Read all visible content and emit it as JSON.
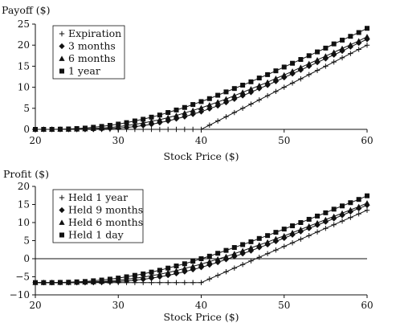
{
  "chart_data": [
    {
      "type": "line",
      "title": "",
      "ylabel": "Payoff ($)",
      "xlabel": "Stock Price ($)",
      "xlim": [
        20,
        60
      ],
      "ylim": [
        0,
        25
      ],
      "xticks": [
        "20",
        "30",
        "40",
        "50",
        "60"
      ],
      "yticks": [
        "0",
        "5",
        "10",
        "15",
        "20",
        "25"
      ],
      "grid": false,
      "legend_position": "top-left",
      "x": [
        20,
        21,
        22,
        23,
        24,
        25,
        26,
        27,
        28,
        29,
        30,
        31,
        32,
        33,
        34,
        35,
        36,
        37,
        38,
        39,
        40,
        41,
        42,
        43,
        44,
        45,
        46,
        47,
        48,
        49,
        50,
        51,
        52,
        53,
        54,
        55,
        56,
        57,
        58,
        59,
        60
      ],
      "series": [
        {
          "name": "Expiration",
          "marker": "plus",
          "values": [
            0,
            0,
            0,
            0,
            0,
            0,
            0,
            0,
            0,
            0,
            0,
            0,
            0,
            0,
            0,
            0,
            0,
            0,
            0,
            0,
            0,
            1,
            2,
            3,
            4,
            5,
            6,
            7,
            8,
            9,
            10,
            11,
            12,
            13,
            14,
            15,
            16,
            17,
            18,
            19,
            20
          ]
        },
        {
          "name": "3 months",
          "marker": "diamond",
          "values": [
            0,
            0,
            0,
            0,
            0,
            0,
            0,
            0.05,
            0.1,
            0.2,
            0.3,
            0.45,
            0.65,
            0.9,
            1.2,
            1.6,
            2.0,
            2.5,
            3.0,
            3.6,
            4.2,
            4.9,
            5.6,
            6.4,
            7.2,
            8.0,
            8.8,
            9.7,
            10.5,
            11.4,
            12.3,
            13.2,
            14.1,
            15.0,
            15.9,
            16.8,
            17.7,
            18.6,
            19.6,
            20.5,
            21.4
          ]
        },
        {
          "name": "6 months",
          "marker": "triangle",
          "values": [
            0,
            0,
            0,
            0,
            0,
            0.05,
            0.1,
            0.2,
            0.3,
            0.45,
            0.65,
            0.9,
            1.2,
            1.5,
            1.9,
            2.3,
            2.8,
            3.3,
            3.9,
            4.5,
            5.1,
            5.8,
            6.5,
            7.2,
            8.0,
            8.8,
            9.6,
            10.4,
            11.2,
            12.1,
            12.9,
            13.8,
            14.7,
            15.6,
            16.5,
            17.4,
            18.3,
            19.2,
            20.1,
            21.0,
            22.0
          ]
        },
        {
          "name": "1 year",
          "marker": "square",
          "values": [
            0,
            0,
            0,
            0.05,
            0.1,
            0.2,
            0.3,
            0.5,
            0.7,
            0.95,
            1.25,
            1.6,
            2.0,
            2.4,
            2.9,
            3.4,
            4.0,
            4.6,
            5.2,
            5.9,
            6.6,
            7.3,
            8.1,
            8.9,
            9.7,
            10.5,
            11.3,
            12.2,
            13.0,
            13.9,
            14.8,
            15.7,
            16.6,
            17.5,
            18.4,
            19.3,
            20.3,
            21.2,
            22.1,
            23.0,
            24.0
          ]
        }
      ]
    },
    {
      "type": "line",
      "title": "",
      "ylabel": "Profit ($)",
      "xlabel": "Stock Price ($)",
      "xlim": [
        20,
        60
      ],
      "ylim": [
        -10,
        20
      ],
      "xticks": [
        "20",
        "30",
        "40",
        "50",
        "60"
      ],
      "yticks": [
        "−10",
        "−5",
        "0",
        "5",
        "10",
        "15",
        "20"
      ],
      "zero_line": true,
      "grid": false,
      "legend_position": "top-left",
      "x": [
        20,
        21,
        22,
        23,
        24,
        25,
        26,
        27,
        28,
        29,
        30,
        31,
        32,
        33,
        34,
        35,
        36,
        37,
        38,
        39,
        40,
        41,
        42,
        43,
        44,
        45,
        46,
        47,
        48,
        49,
        50,
        51,
        52,
        53,
        54,
        55,
        56,
        57,
        58,
        59,
        60
      ],
      "series": [
        {
          "name": "Held 1 year",
          "marker": "plus",
          "values": [
            -6.6,
            -6.6,
            -6.6,
            -6.6,
            -6.6,
            -6.6,
            -6.6,
            -6.6,
            -6.6,
            -6.6,
            -6.6,
            -6.6,
            -6.6,
            -6.6,
            -6.6,
            -6.6,
            -6.6,
            -6.6,
            -6.6,
            -6.6,
            -6.6,
            -5.6,
            -4.6,
            -3.6,
            -2.6,
            -1.6,
            -0.6,
            0.4,
            1.4,
            2.4,
            3.4,
            4.4,
            5.4,
            6.4,
            7.4,
            8.4,
            9.4,
            10.4,
            11.4,
            12.4,
            13.4
          ]
        },
        {
          "name": "Held 9 months",
          "marker": "diamond",
          "values": [
            -6.6,
            -6.6,
            -6.6,
            -6.6,
            -6.6,
            -6.6,
            -6.6,
            -6.55,
            -6.5,
            -6.4,
            -6.3,
            -6.15,
            -5.95,
            -5.7,
            -5.4,
            -5.0,
            -4.6,
            -4.1,
            -3.6,
            -3.0,
            -2.4,
            -1.7,
            -1.0,
            -0.2,
            0.6,
            1.4,
            2.2,
            3.1,
            3.9,
            4.8,
            5.7,
            6.6,
            7.5,
            8.4,
            9.3,
            10.2,
            11.1,
            12.0,
            13.0,
            13.9,
            14.8
          ]
        },
        {
          "name": "Held 6 months",
          "marker": "triangle",
          "values": [
            -6.6,
            -6.6,
            -6.6,
            -6.6,
            -6.6,
            -6.55,
            -6.5,
            -6.4,
            -6.3,
            -6.15,
            -5.95,
            -5.7,
            -5.4,
            -5.1,
            -4.7,
            -4.3,
            -3.8,
            -3.3,
            -2.7,
            -2.1,
            -1.5,
            -0.8,
            -0.1,
            0.6,
            1.4,
            2.2,
            3.0,
            3.8,
            4.6,
            5.5,
            6.3,
            7.2,
            8.1,
            9.0,
            9.9,
            10.8,
            11.7,
            12.6,
            13.5,
            14.4,
            15.4
          ]
        },
        {
          "name": "Held 1 day",
          "marker": "square",
          "values": [
            -6.6,
            -6.6,
            -6.6,
            -6.55,
            -6.5,
            -6.4,
            -6.3,
            -6.1,
            -5.9,
            -5.65,
            -5.35,
            -5.0,
            -4.6,
            -4.2,
            -3.7,
            -3.2,
            -2.6,
            -2.0,
            -1.4,
            -0.7,
            0.0,
            0.7,
            1.5,
            2.3,
            3.1,
            3.9,
            4.7,
            5.6,
            6.4,
            7.3,
            8.2,
            9.1,
            10.0,
            10.9,
            11.8,
            12.7,
            13.7,
            14.6,
            15.5,
            16.4,
            17.4
          ]
        }
      ]
    }
  ]
}
